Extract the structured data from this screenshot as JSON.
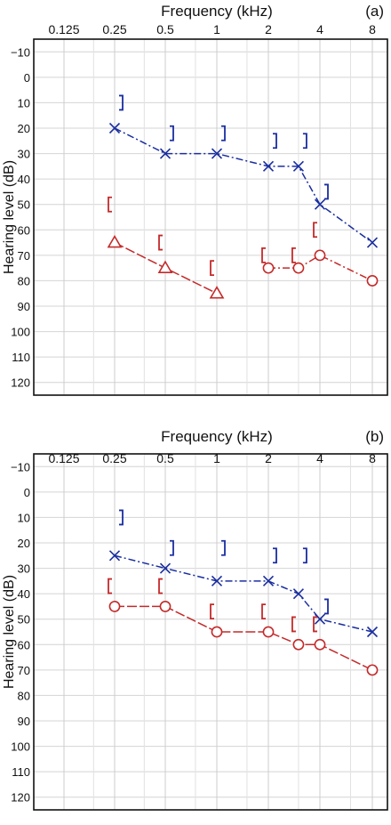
{
  "chart_data": [
    {
      "type": "line",
      "panel_label": "(a)",
      "xlabel": "Frequency (kHz)",
      "ylabel": "Hearing level (dB)",
      "x_scale": "log",
      "x_ticks": [
        "0.125",
        "0.25",
        "0.5",
        "1",
        "2",
        "4",
        "8"
      ],
      "y_ticks": [
        -10,
        0,
        10,
        20,
        30,
        40,
        50,
        60,
        70,
        80,
        90,
        100,
        110,
        120
      ],
      "ylim": [
        -15,
        125
      ],
      "y_inverted": true,
      "grid": true,
      "series": [
        {
          "marker": "x",
          "color": "#1a2ea0",
          "line": "dash-dot",
          "mark_type": "air",
          "points": [
            [
              0.25,
              20
            ],
            [
              0.5,
              30
            ],
            [
              1,
              30
            ],
            [
              2,
              35
            ],
            [
              3,
              35
            ],
            [
              4,
              50
            ],
            [
              8,
              65
            ]
          ]
        },
        {
          "marker": "]",
          "color": "#1a2ea0",
          "line": "none",
          "mark_type": "bone",
          "points": [
            [
              0.25,
              10
            ],
            [
              0.5,
              22
            ],
            [
              1,
              22
            ],
            [
              2,
              25
            ],
            [
              3,
              25
            ],
            [
              4,
              45
            ]
          ]
        },
        {
          "marker": "triangle",
          "color": "#c42a2a",
          "line": "solid",
          "mark_type": "air",
          "points": [
            [
              0.25,
              65
            ],
            [
              0.5,
              75
            ],
            [
              1,
              85
            ]
          ]
        },
        {
          "marker": "circle",
          "color": "#c42a2a",
          "line": "dash-dot",
          "mark_type": "air",
          "points": [
            [
              2,
              75
            ],
            [
              3,
              75
            ],
            [
              4,
              70
            ],
            [
              8,
              80
            ]
          ]
        },
        {
          "marker": "[",
          "color": "#c42a2a",
          "line": "none",
          "mark_type": "bone",
          "points": [
            [
              0.25,
              50
            ],
            [
              0.5,
              65
            ],
            [
              1,
              75
            ],
            [
              2,
              70
            ],
            [
              3,
              70
            ],
            [
              4,
              60
            ]
          ]
        }
      ]
    },
    {
      "type": "line",
      "panel_label": "(b)",
      "xlabel": "Frequency (kHz)",
      "ylabel": "Hearing level (dB)",
      "x_scale": "log",
      "x_ticks": [
        "0.125",
        "0.25",
        "0.5",
        "1",
        "2",
        "4",
        "8"
      ],
      "y_ticks": [
        -10,
        0,
        10,
        20,
        30,
        40,
        50,
        60,
        70,
        80,
        90,
        100,
        110,
        120
      ],
      "ylim": [
        -15,
        125
      ],
      "y_inverted": true,
      "grid": true,
      "series": [
        {
          "marker": "x",
          "color": "#1a2ea0",
          "line": "dash-dot",
          "mark_type": "air",
          "points": [
            [
              0.25,
              25
            ],
            [
              0.5,
              30
            ],
            [
              1,
              35
            ],
            [
              2,
              35
            ],
            [
              3,
              40
            ],
            [
              4,
              50
            ],
            [
              8,
              55
            ]
          ]
        },
        {
          "marker": "]",
          "color": "#1a2ea0",
          "line": "none",
          "mark_type": "bone",
          "points": [
            [
              0.25,
              10
            ],
            [
              0.5,
              22
            ],
            [
              1,
              22
            ],
            [
              2,
              25
            ],
            [
              3,
              25
            ],
            [
              4,
              45
            ]
          ]
        },
        {
          "marker": "circle",
          "color": "#c42a2a",
          "line": "solid",
          "mark_type": "air",
          "points": [
            [
              0.25,
              45
            ],
            [
              0.5,
              45
            ],
            [
              1,
              55
            ],
            [
              2,
              55
            ],
            [
              3,
              60
            ],
            [
              4,
              60
            ],
            [
              8,
              70
            ]
          ]
        },
        {
          "marker": "[",
          "color": "#c42a2a",
          "line": "none",
          "mark_type": "bone",
          "points": [
            [
              0.25,
              37
            ],
            [
              0.5,
              37
            ],
            [
              1,
              47
            ],
            [
              2,
              47
            ],
            [
              3,
              52
            ],
            [
              4,
              52
            ]
          ]
        }
      ]
    }
  ]
}
